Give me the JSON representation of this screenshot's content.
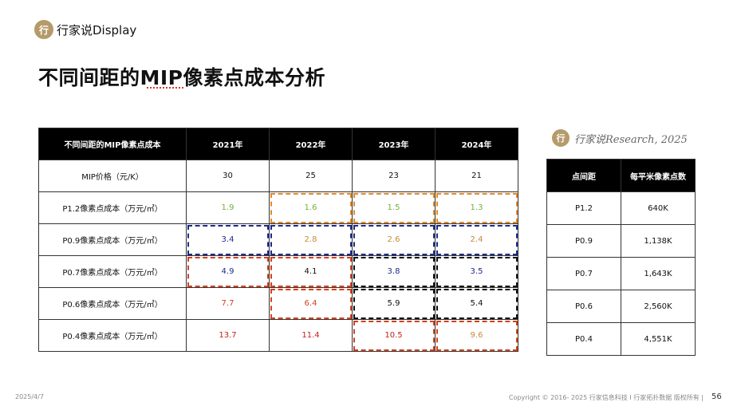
{
  "header": {
    "brand": "行家说Display",
    "logo_glyph": "行",
    "title": "不同间距的MIP像素点成本分析"
  },
  "cost_table": {
    "headers": [
      "不同间距的MIP像素点成本",
      "2021年",
      "2022年",
      "2023年",
      "2024年"
    ],
    "rows": [
      {
        "label": "MIP价格（元/K）",
        "values": [
          "30",
          "25",
          "23",
          "21"
        ]
      },
      {
        "label": "P1.2像素点成本（万元/㎡）",
        "values": [
          "1.9",
          "1.6",
          "1.5",
          "1.3"
        ]
      },
      {
        "label": "P0.9像素点成本（万元/㎡）",
        "values": [
          "3.4",
          "2.8",
          "2.6",
          "2.4"
        ]
      },
      {
        "label": "P0.7像素点成本（万元/㎡）",
        "values": [
          "4.9",
          "4.1",
          "3.8",
          "3.5"
        ]
      },
      {
        "label": "P0.6像素点成本（万元/㎡）",
        "values": [
          "7.7",
          "6.4",
          "5.9",
          "5.4"
        ]
      },
      {
        "label": "P0.4像素点成本（万元/㎡）",
        "values": [
          "13.7",
          "11.4",
          "10.5",
          "9.6"
        ]
      }
    ]
  },
  "research": {
    "label": "行家说Research, 2025",
    "logo_glyph": "行"
  },
  "density_table": {
    "headers": [
      "点间距",
      "每平米像素点数"
    ],
    "rows": [
      [
        "P1.2",
        "640K"
      ],
      [
        "P0.9",
        "1,138K"
      ],
      [
        "P0.7",
        "1,643K"
      ],
      [
        "P0.6",
        "2,560K"
      ],
      [
        "P0.4",
        "4,551K"
      ]
    ]
  },
  "footer": {
    "date": "2025/4/7",
    "copyright": "Copyright © 2016- 2025 行家信息科技 I 行家拓扑数据 版权所有 |",
    "page": "56"
  },
  "colors": {
    "green": "#70b23b",
    "orange": "#c9883a",
    "blue": "#1c2a8a",
    "red": "#d0421f",
    "brand_gold": "#b59a6a"
  }
}
